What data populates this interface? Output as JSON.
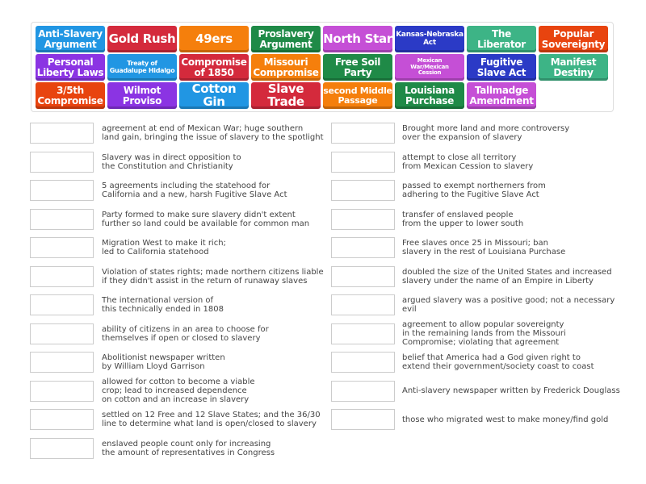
{
  "colors": {
    "blue": "#2196e3",
    "red": "#d42a3c",
    "orange": "#f57f0c",
    "green": "#1f8a47",
    "magenta": "#c54fd6",
    "navy": "#2b3ac6",
    "teal": "#3db486",
    "redorange": "#e8440f",
    "purple": "#8b34e3"
  },
  "tiles": [
    {
      "label": "Anti-Slavery\nArgument",
      "color": "blue",
      "size": 12
    },
    {
      "label": "Gold Rush",
      "color": "red",
      "size": 15
    },
    {
      "label": "49ers",
      "color": "orange",
      "size": 15
    },
    {
      "label": "Proslavery\nArgument",
      "color": "green",
      "size": 12
    },
    {
      "label": "North Star",
      "color": "magenta",
      "size": 15
    },
    {
      "label": "Kansas-Nebraska\nAct",
      "color": "navy",
      "size": 9
    },
    {
      "label": "The Liberator",
      "color": "teal",
      "size": 12
    },
    {
      "label": "Popular\nSovereignty",
      "color": "redorange",
      "size": 12
    },
    {
      "label": "Personal\nLiberty Laws",
      "color": "purple",
      "size": 12
    },
    {
      "label": "Treaty of\nGuadalupe Hidalgo",
      "color": "blue",
      "size": 8
    },
    {
      "label": "Compromise\nof 1850",
      "color": "red",
      "size": 12
    },
    {
      "label": "Missouri\nCompromise",
      "color": "orange",
      "size": 12
    },
    {
      "label": "Free Soil\nParty",
      "color": "green",
      "size": 12
    },
    {
      "label": "Mexican\nWar/Mexican\nCession",
      "color": "magenta",
      "size": 7
    },
    {
      "label": "Fugitive\nSlave Act",
      "color": "navy",
      "size": 12
    },
    {
      "label": "Manifest\nDestiny",
      "color": "teal",
      "size": 12
    },
    {
      "label": "3/5th\nCompromise",
      "color": "redorange",
      "size": 12
    },
    {
      "label": "Wilmot\nProviso",
      "color": "purple",
      "size": 12
    },
    {
      "label": "Cotton Gin",
      "color": "blue",
      "size": 15
    },
    {
      "label": "Slave Trade",
      "color": "red",
      "size": 15
    },
    {
      "label": "second Middle\nPassage",
      "color": "orange",
      "size": 11
    },
    {
      "label": "Louisiana\nPurchase",
      "color": "green",
      "size": 12
    },
    {
      "label": "Tallmadge\nAmendment",
      "color": "magenta",
      "size": 12
    }
  ],
  "left_clues": [
    "agreement at end of Mexican War; huge southern\nland gain, bringing the issue of slavery to the spotlight",
    "Slavery was in direct opposition to\nthe Constitution and Christianity",
    "5 agreements including the statehood for\nCalifornia and a new, harsh Fugitive Slave Act",
    "Party formed to make sure slavery didn't extent\nfurther so land could be available for common man",
    "Migration West to make it rich;\nled to California statehood",
    "Violation of states rights; made northern citizens liable\nif they didn't assist in the return of runaway slaves",
    "The international version of\nthis technically ended in 1808",
    "ability of citizens in an area to choose for\nthemselves if open or closed to slavery",
    "Abolitionist newspaper written\nby William Lloyd Garrison",
    "allowed for cotton to become a viable\ncrop; lead to increased dependence\non cotton and an increase in slavery",
    "settled on 12 Free and 12 Slave States; and the 36/30\nline to determine what land is open/closed to slavery",
    "enslaved people count only for increasing\nthe amount of representatives in Congress"
  ],
  "right_clues": [
    "Brought more land and more controversy\nover the expansion of slavery",
    "attempt to close all territory\nfrom Mexican Cession to slavery",
    "passed to exempt northerners from\nadhering to the Fugitive Slave Act",
    "transfer of enslaved people\nfrom the upper to lower south",
    "Free slaves once 25 in Missouri; ban\nslavery in the rest of Louisiana Purchase",
    "doubled the size of the United States and increased\nslavery under the name of an Empire in Liberty",
    "argued slavery was a positive good; not a necessary evil",
    "agreement to allow popular sovereignty\nin the remaining lands from the Missouri\nCompromise; violating that agreement",
    "belief that America had a God given right to\nextend their government/society coast to coast",
    "Anti-slavery newspaper written by Frederick Douglass",
    "those who migrated west to make money/find gold"
  ]
}
